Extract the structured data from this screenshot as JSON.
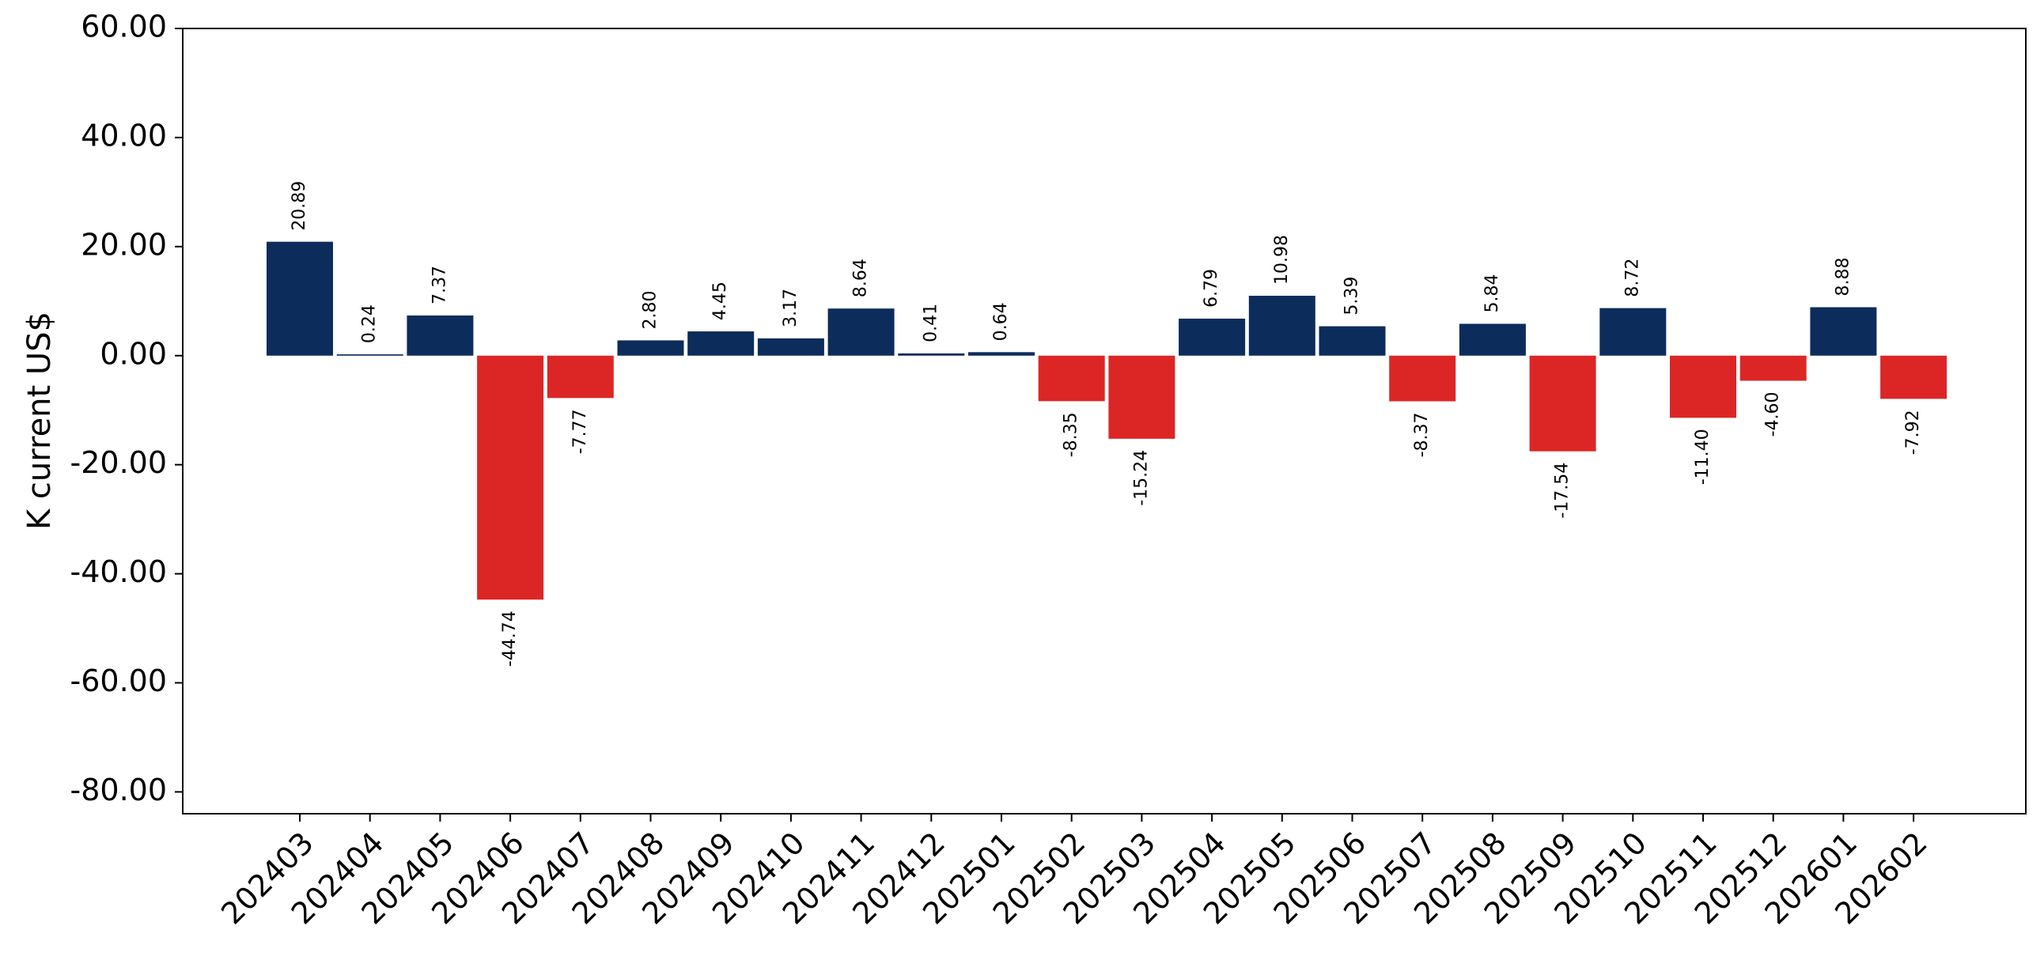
{
  "chart_data": {
    "type": "bar",
    "title": "",
    "xlabel": "",
    "ylabel": "K current US$",
    "categories": [
      "202403",
      "202404",
      "202405",
      "202406",
      "202407",
      "202408",
      "202409",
      "202410",
      "202411",
      "202412",
      "202501",
      "202502",
      "202503",
      "202504",
      "202505",
      "202506",
      "202507",
      "202508",
      "202509",
      "202510",
      "202511",
      "202512",
      "202601",
      "202602"
    ],
    "values": [
      20.89,
      0.24,
      7.37,
      -44.74,
      -7.77,
      2.8,
      4.45,
      3.17,
      8.64,
      0.41,
      0.64,
      -8.35,
      -15.24,
      6.79,
      10.98,
      5.39,
      -8.37,
      5.84,
      -17.54,
      8.72,
      -11.4,
      -4.6,
      8.88,
      -7.92
    ],
    "value_labels": [
      "20.89",
      "0.24",
      "7.37",
      "-44.74",
      "-7.77",
      "2.80",
      "4.45",
      "3.17",
      "8.64",
      "0.41",
      "0.64",
      "-8.35",
      "-15.24",
      "6.79",
      "10.98",
      "5.39",
      "-8.37",
      "5.84",
      "-17.54",
      "8.72",
      "-11.40",
      "-4.60",
      "8.88",
      "-7.92"
    ],
    "yticks": [
      60,
      40,
      20,
      0,
      -20,
      -40,
      -60,
      -80
    ],
    "ytick_labels": [
      "60.00",
      "40.00",
      "20.00",
      "0.00",
      "-20.00",
      "-40.00",
      "-60.00",
      "-80.00"
    ],
    "ylim": [
      -84,
      60
    ],
    "grid": false,
    "colors": {
      "positive": "#0c2c5c",
      "negative": "#dc2626"
    }
  }
}
